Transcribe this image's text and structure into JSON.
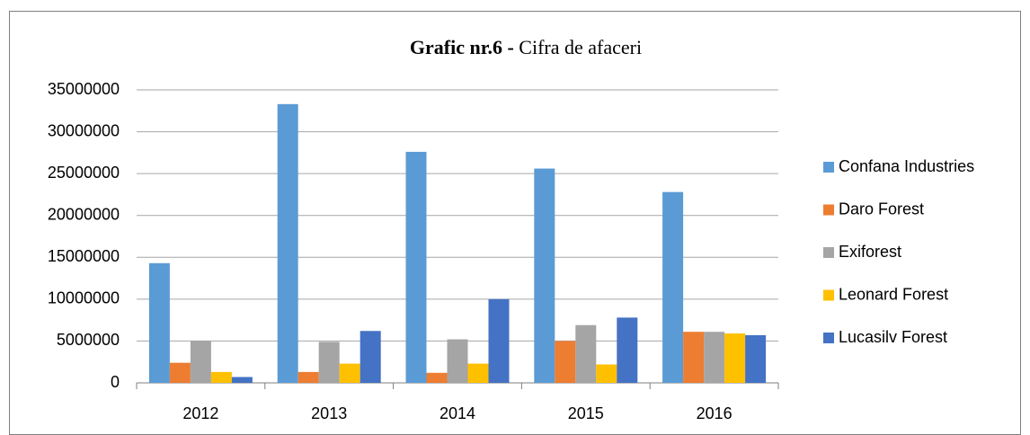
{
  "chart_data": {
    "type": "bar",
    "title": [
      "Grafic nr.6 -",
      "Cifra de afaceri"
    ],
    "categories": [
      "2012",
      "2013",
      "2014",
      "2015",
      "2016"
    ],
    "series": [
      {
        "name": "Confana Industries",
        "color": "#5b9bd5",
        "values": [
          14300000,
          33300000,
          27600000,
          25600000,
          22800000
        ]
      },
      {
        "name": "Daro Forest",
        "color": "#ed7d31",
        "values": [
          2400000,
          1300000,
          1200000,
          5000000,
          6100000
        ]
      },
      {
        "name": "Exiforest",
        "color": "#a5a5a5",
        "values": [
          5000000,
          4900000,
          5200000,
          6900000,
          6100000
        ]
      },
      {
        "name": "Leonard Forest",
        "color": "#ffc000",
        "values": [
          1300000,
          2300000,
          2300000,
          2200000,
          5900000
        ]
      },
      {
        "name": "Lucasilv Forest",
        "color": "#4472c4",
        "values": [
          700000,
          6200000,
          10000000,
          7800000,
          5700000
        ]
      }
    ],
    "ylim": [
      0,
      35000000
    ],
    "yticks": [
      0,
      5000000,
      10000000,
      15000000,
      20000000,
      25000000,
      30000000,
      35000000
    ],
    "grid": true,
    "legend": "right"
  }
}
